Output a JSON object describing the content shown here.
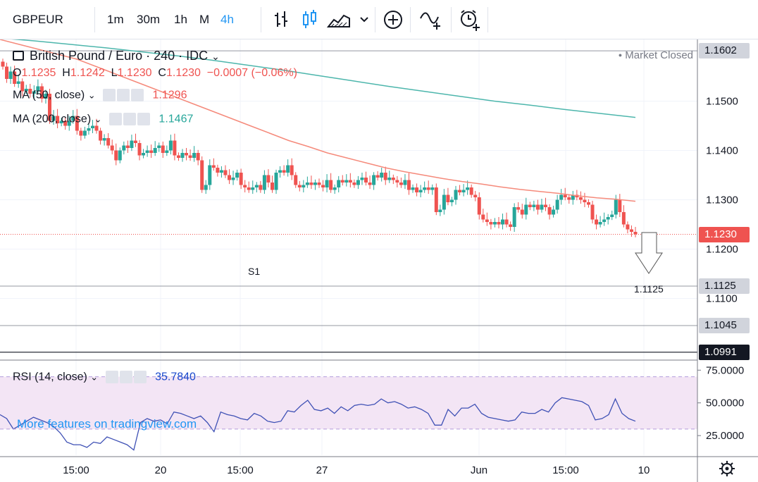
{
  "toolbar": {
    "symbol": "GBPEUR",
    "intervals": [
      "1m",
      "30m",
      "1h",
      "M",
      "4h"
    ],
    "active_interval": "4h",
    "icons": [
      "bar-style-icon",
      "candle-style-icon",
      "area-style-icon",
      "chevron-down-icon",
      "add-compare-icon",
      "indicators-icon",
      "alert-icon"
    ]
  },
  "legend": {
    "title": "British Pound / Euro · 240 · IDC",
    "market_status": "Market Closed",
    "ohlc": {
      "O": "1.1235",
      "H": "1.1242",
      "L": "1.1230",
      "C": "1.1230",
      "change": "−0.0007 (−0.06%)"
    },
    "ma50": {
      "label": "MA (50, close)",
      "value": "1.1296"
    },
    "ma200": {
      "label": "MA (200, close)",
      "value": "1.1467"
    },
    "rsi": {
      "label": "RSI (14, close)",
      "value": "35.7840"
    }
  },
  "watermark": "More features on tradingview.com",
  "annotations": {
    "s1_label": "S1",
    "target_label": "1.1125"
  },
  "colors": {
    "up": "#26a69a",
    "down": "#ef5350",
    "ma50": "#f58a7b",
    "ma200": "#4db6ac",
    "rsi_line": "#3f51b5",
    "rsi_band": "#f3e5f5"
  },
  "chart_data": [
    {
      "type": "candlestick",
      "title": "British Pound / Euro · 240 · IDC",
      "ylim": [
        1.0975,
        1.1625
      ],
      "y_ticks": [
        "1.1500",
        "1.1400",
        "1.1300",
        "1.1200",
        "1.1100"
      ],
      "x_ticks": [
        "15:00",
        "20",
        "15:00",
        "27",
        "Jun",
        "15:00",
        "10"
      ],
      "price_labels": [
        {
          "value": 1.1602,
          "text": "1.1602",
          "style": "gray"
        },
        {
          "value": 1.123,
          "text": "1.1230",
          "style": "red"
        },
        {
          "value": 1.1125,
          "text": "1.1125",
          "style": "gray"
        },
        {
          "value": 1.1045,
          "text": "1.1045",
          "style": "gray"
        },
        {
          "value": 1.0991,
          "text": "1.0991",
          "style": "black"
        }
      ],
      "horizontal_levels": [
        1.1602,
        1.1125,
        1.1045,
        1.0991
      ],
      "current_price": 1.123,
      "target": 1.1125,
      "close": [
        1.157,
        1.1545,
        1.156,
        1.1535,
        1.154,
        1.152,
        1.1525,
        1.1515,
        1.152,
        1.153,
        1.1505,
        1.1515,
        1.146,
        1.147,
        1.1455,
        1.146,
        1.145,
        1.146,
        1.147,
        1.144,
        1.143,
        1.144,
        1.1445,
        1.145,
        1.144,
        1.142,
        1.1425,
        1.141,
        1.14,
        1.138,
        1.14,
        1.141,
        1.1405,
        1.142,
        1.1415,
        1.139,
        1.1395,
        1.14,
        1.1395,
        1.1405,
        1.141,
        1.1395,
        1.14,
        1.142,
        1.139,
        1.1385,
        1.1395,
        1.139,
        1.1385,
        1.1395,
        1.138,
        1.132,
        1.133,
        1.137,
        1.1365,
        1.1355,
        1.136,
        1.135,
        1.134,
        1.1345,
        1.1355,
        1.133,
        1.1325,
        1.132,
        1.1325,
        1.133,
        1.132,
        1.135,
        1.1335,
        1.132,
        1.1355,
        1.136,
        1.1355,
        1.137,
        1.135,
        1.133,
        1.1325,
        1.133,
        1.1335,
        1.133,
        1.1335,
        1.133,
        1.1325,
        1.134,
        1.132,
        1.1325,
        1.134,
        1.1335,
        1.134,
        1.1335,
        1.133,
        1.134,
        1.1345,
        1.1335,
        1.133,
        1.135,
        1.1345,
        1.1355,
        1.134,
        1.1345,
        1.134,
        1.1335,
        1.133,
        1.134,
        1.132,
        1.1325,
        1.1315,
        1.132,
        1.1325,
        1.132,
        1.1325,
        1.1275,
        1.128,
        1.131,
        1.1295,
        1.13,
        1.132,
        1.1315,
        1.132,
        1.1325,
        1.131,
        1.1305,
        1.127,
        1.126,
        1.1255,
        1.125,
        1.1255,
        1.125,
        1.126,
        1.125,
        1.1245,
        1.1285,
        1.128,
        1.127,
        1.129,
        1.1285,
        1.129,
        1.128,
        1.129,
        1.1285,
        1.127,
        1.128,
        1.13,
        1.131,
        1.1305,
        1.13,
        1.131,
        1.1305,
        1.13,
        1.1295,
        1.129,
        1.126,
        1.125,
        1.1255,
        1.126,
        1.1265,
        1.127,
        1.13,
        1.1275,
        1.125,
        1.124,
        1.1235,
        1.123
      ],
      "ma50": [
        1.1625,
        1.1615,
        1.1605,
        1.1595,
        1.1585,
        1.157,
        1.1555,
        1.154,
        1.1525,
        1.151,
        1.1495,
        1.148,
        1.1465,
        1.145,
        1.1435,
        1.142,
        1.1408,
        1.1395,
        1.1385,
        1.1375,
        1.1365,
        1.1357,
        1.135,
        1.1343,
        1.1337,
        1.1332,
        1.1326,
        1.1321,
        1.1317,
        1.1313,
        1.1308,
        1.1304,
        1.1301,
        1.1297
      ],
      "ma200": [
        1.1628,
        1.1622,
        1.1615,
        1.1608,
        1.16,
        1.1592,
        1.1583,
        1.1573,
        1.1563,
        1.1552,
        1.1541,
        1.153,
        1.152,
        1.151,
        1.15,
        1.1492,
        1.1483,
        1.1475,
        1.1467
      ],
      "rsi": {
        "label": "RSI (14, close)",
        "ylim": [
          10,
          80
        ],
        "y_ticks": [
          "75.0000",
          "50.0000",
          "25.0000"
        ],
        "band": [
          30,
          70
        ],
        "values": [
          41,
          38,
          30,
          33,
          36,
          39,
          37,
          35,
          32,
          27,
          20,
          18,
          18,
          16,
          20,
          19,
          24,
          22,
          20,
          18,
          14,
          35,
          38,
          36,
          37,
          34,
          43,
          42,
          40,
          38,
          40,
          35,
          28,
          43,
          41,
          40,
          38,
          37,
          42,
          40,
          36,
          35,
          36,
          44,
          43,
          48,
          52,
          45,
          44,
          46,
          42,
          47,
          44,
          48,
          49,
          48,
          49,
          53,
          50,
          51,
          49,
          46,
          47,
          45,
          42,
          33,
          33,
          45,
          40,
          46,
          46,
          49,
          42,
          39,
          38,
          37,
          36,
          37,
          43,
          42,
          42,
          45,
          43,
          50,
          54,
          53,
          52,
          51,
          48,
          37,
          38,
          41,
          53,
          42,
          38,
          36
        ]
      }
    }
  ]
}
